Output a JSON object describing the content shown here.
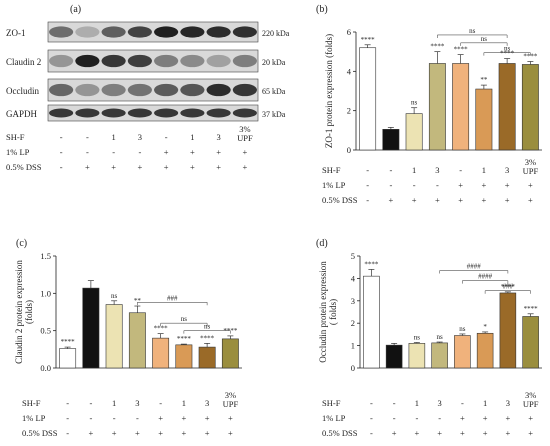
{
  "panels": {
    "a": {
      "label": "(a)"
    },
    "b": {
      "label": "(b)"
    },
    "c": {
      "label": "(c)"
    },
    "d": {
      "label": "(d)"
    }
  },
  "blot": {
    "bands": [
      {
        "name": "ZO-1",
        "kda": "220 kDa"
      },
      {
        "name": "Claudin 2",
        "kda": "20 kDa"
      },
      {
        "name": "Occludin",
        "kda": "65 kDa"
      },
      {
        "name": "GAPDH",
        "kda": "37 kDa"
      }
    ],
    "intensity": [
      [
        0.62,
        0.35,
        0.68,
        0.8,
        0.95,
        0.92,
        0.9,
        0.88
      ],
      [
        0.45,
        0.95,
        0.85,
        0.82,
        0.55,
        0.5,
        0.4,
        0.55
      ],
      [
        0.65,
        0.45,
        0.55,
        0.6,
        0.7,
        0.72,
        0.9,
        0.85
      ],
      [
        0.85,
        0.85,
        0.85,
        0.85,
        0.85,
        0.85,
        0.85,
        0.85
      ]
    ]
  },
  "treatments": {
    "rows": [
      {
        "label": "SH-F",
        "cells": [
          "-",
          "-",
          "1",
          "3",
          "-",
          "1",
          "3",
          "3%\nUPF"
        ]
      },
      {
        "label": "1% LP",
        "cells": [
          "-",
          "-",
          "-",
          "-",
          "+",
          "+",
          "+",
          "+"
        ]
      },
      {
        "label": "0.5% DSS",
        "cells": [
          "-",
          "+",
          "+",
          "+",
          "+",
          "+",
          "+",
          "+"
        ]
      }
    ]
  },
  "chart_data": [
    {
      "panel": "b",
      "type": "bar",
      "ylabel": "ZO-1 protein expression (folds)",
      "ylim": [
        0,
        6
      ],
      "yticks": [
        0,
        2,
        4,
        6
      ],
      "values": [
        5.2,
        1.05,
        1.85,
        4.4,
        4.4,
        3.1,
        4.4,
        4.35
      ],
      "errors": [
        0.15,
        0.1,
        0.3,
        0.6,
        0.45,
        0.2,
        0.25,
        0.15
      ],
      "colors": [
        "#ffffff",
        "#111111",
        "#ece3b3",
        "#c2b87d",
        "#f0b27c",
        "#d99a56",
        "#9a6a28",
        "#9a8e3e"
      ],
      "sig": [
        "****",
        "",
        "ns",
        "****",
        "****",
        "**",
        "****",
        "****"
      ],
      "brackets": [
        {
          "from": 3,
          "to": 6,
          "label": "ns",
          "y": 5.85
        },
        {
          "from": 4,
          "to": 6,
          "label": "ns",
          "y": 5.45
        },
        {
          "from": 5,
          "to": 7,
          "label": "ns",
          "y": 4.95
        }
      ]
    },
    {
      "panel": "c",
      "type": "bar",
      "ylabel": "Claudin 2 protein expression\n(folds)",
      "ylim": [
        0,
        1.5
      ],
      "yticks": [
        0.0,
        0.5,
        1.0,
        1.5
      ],
      "ticklabels": [
        "0.0",
        "0.5",
        "1.0",
        "1.5"
      ],
      "values": [
        0.26,
        1.07,
        0.85,
        0.74,
        0.4,
        0.31,
        0.28,
        0.39
      ],
      "errors": [
        0.02,
        0.1,
        0.05,
        0.09,
        0.06,
        0.01,
        0.05,
        0.04
      ],
      "colors": [
        "#ffffff",
        "#111111",
        "#ece3b3",
        "#c2b87d",
        "#f0b27c",
        "#d99a56",
        "#9a6a28",
        "#9a8e3e"
      ],
      "sig": [
        "****",
        "",
        "ns",
        "**",
        "****",
        "****",
        "****",
        "****"
      ],
      "brackets": [
        {
          "from": 3,
          "to": 6,
          "label": "###",
          "y": 0.88
        },
        {
          "from": 4,
          "to": 6,
          "label": "ns",
          "y": 0.6
        },
        {
          "from": 5,
          "to": 7,
          "label": "ns",
          "y": 0.5
        }
      ]
    },
    {
      "panel": "d",
      "type": "bar",
      "ylabel": "Occludin protein expression\n( folds)",
      "ylim": [
        0,
        5
      ],
      "yticks": [
        0,
        1,
        2,
        3,
        4,
        5
      ],
      "values": [
        4.1,
        1.02,
        1.1,
        1.12,
        1.45,
        1.55,
        3.35,
        2.3
      ],
      "errors": [
        0.3,
        0.08,
        0.04,
        0.04,
        0.07,
        0.06,
        0.05,
        0.12
      ],
      "colors": [
        "#ffffff",
        "#111111",
        "#ece3b3",
        "#c2b87d",
        "#f0b27c",
        "#d99a56",
        "#9a6a28",
        "#9a8e3e"
      ],
      "sig": [
        "****",
        "",
        "ns",
        "ns",
        "ns",
        "*",
        "****",
        "****"
      ],
      "brackets": [
        {
          "from": 3,
          "to": 6,
          "label": "####",
          "y": 4.35
        },
        {
          "from": 4,
          "to": 6,
          "label": "####",
          "y": 3.9
        },
        {
          "from": 5,
          "to": 7,
          "label": "###",
          "y": 3.45
        }
      ]
    }
  ]
}
